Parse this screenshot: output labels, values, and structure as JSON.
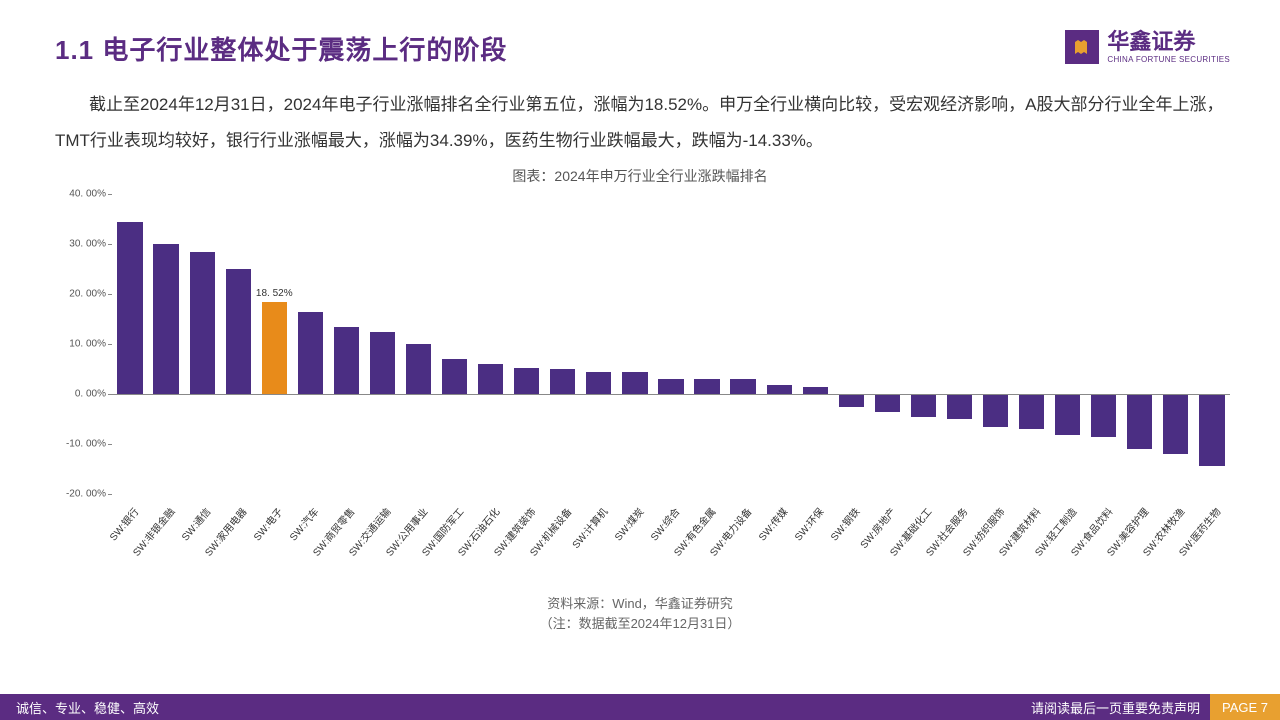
{
  "header": {
    "title": "1.1  电子行业整体处于震荡上行的阶段",
    "logo_cn": "华鑫证券",
    "logo_en": "CHINA FORTUNE SECURITIES"
  },
  "body_text": "截止至2024年12月31日，2024年电子行业涨幅排名全行业第五位，涨幅为18.52%。申万全行业横向比较，受宏观经济影响，A股大部分行业全年上涨，TMT行业表现均较好，银行行业涨幅最大，涨幅为34.39%，医药生物行业跌幅最大，跌幅为-14.33%。",
  "chart": {
    "title": "图表：2024年申万行业全行业涨跌幅排名",
    "type": "bar",
    "y_min": -20,
    "y_max": 40,
    "y_ticks": [
      40,
      30,
      20,
      10,
      0,
      -10,
      -20
    ],
    "y_tick_format_suffix": ". 00%",
    "zero_at": 0,
    "bar_color": "#4b2e83",
    "highlight_color": "#e88b1a",
    "highlight_index": 4,
    "highlight_label": "18. 52%",
    "background_color": "#ffffff",
    "axis_fontsize": 10,
    "categories": [
      "SW:银行",
      "SW:非银金融",
      "SW:通信",
      "SW:家用电器",
      "SW:电子",
      "SW:汽车",
      "SW:商贸零售",
      "SW:交通运输",
      "SW:公用事业",
      "SW:国防军工",
      "SW:石油石化",
      "SW:建筑装饰",
      "SW:机械设备",
      "SW:计算机",
      "SW:煤炭",
      "SW:综合",
      "SW:有色金属",
      "SW:电力设备",
      "SW:传媒",
      "SW:环保",
      "SW:钢铁",
      "SW:房地产",
      "SW:基础化工",
      "SW:社会服务",
      "SW:纺织服饰",
      "SW:建筑材料",
      "SW:轻工制造",
      "SW:食品饮料",
      "SW:美容护理",
      "SW:农林牧渔",
      "SW:医药生物"
    ],
    "values": [
      34.39,
      30.0,
      28.5,
      25.0,
      18.52,
      16.5,
      13.5,
      12.5,
      10.0,
      7.0,
      6.0,
      5.3,
      5.0,
      4.5,
      4.5,
      3.0,
      3.0,
      3.0,
      1.8,
      1.5,
      -2.5,
      -3.5,
      -4.5,
      -5.0,
      -6.5,
      -7.0,
      -8.2,
      -8.5,
      -11.0,
      -12.0,
      -14.33
    ]
  },
  "source": {
    "line1": "资料来源：Wind，华鑫证券研究",
    "line2": "（注：数据截至2024年12月31日）"
  },
  "footer": {
    "left": "诚信、专业、稳健、高效",
    "right": "请阅读最后一页重要免责声明",
    "page": "PAGE 7"
  },
  "colors": {
    "brand": "#5b2c82",
    "accent": "#e8a030",
    "text": "#333333"
  }
}
